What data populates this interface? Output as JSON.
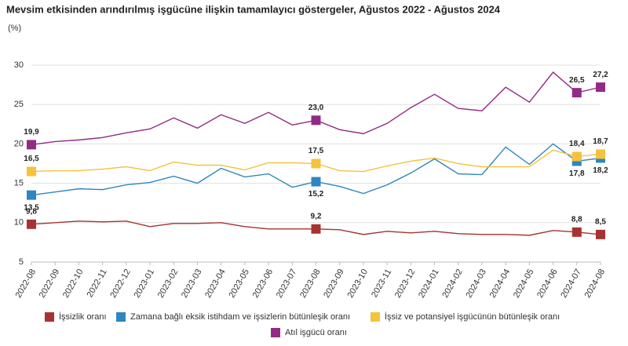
{
  "chart_data": {
    "type": "line",
    "title": "Mevsim etkisinden arındırılmış işgücüne ilişkin tamamlayıcı göstergeler, Ağustos 2022 - Ağustos 2024",
    "subtitle": "(%)",
    "categories": [
      "2022-08",
      "2022-09",
      "2022-10",
      "2022-11",
      "2022-12",
      "2023-01",
      "2023-02",
      "2023-03",
      "2023-04",
      "2023-05",
      "2023-06",
      "2023-07",
      "2023-08",
      "2023-09",
      "2023-10",
      "2023-11",
      "2023-12",
      "2024-01",
      "2024-02",
      "2024-03",
      "2024-04",
      "2024-05",
      "2024-06",
      "2024-07",
      "2024-08"
    ],
    "ylim": [
      5,
      30
    ],
    "yticks": [
      5,
      10,
      15,
      20,
      25,
      30
    ],
    "grid": true,
    "series": [
      {
        "name": "İşsizlik oranı",
        "color": "#a83232",
        "values": [
          9.8,
          10.0,
          10.2,
          10.1,
          10.2,
          9.5,
          9.9,
          9.9,
          10.0,
          9.5,
          9.2,
          9.2,
          9.2,
          9.1,
          8.5,
          8.9,
          8.7,
          8.9,
          8.6,
          8.5,
          8.5,
          8.4,
          9.0,
          8.8,
          8.5
        ],
        "value_labels": [
          "9,8",
          null,
          null,
          null,
          null,
          null,
          null,
          null,
          null,
          null,
          null,
          null,
          "9,2",
          null,
          null,
          null,
          null,
          null,
          null,
          null,
          null,
          null,
          null,
          "8,8",
          "8,5"
        ]
      },
      {
        "name": "Zamana bağlı eksik istihdam ve işsizlerin bütünleşik oranı",
        "color": "#2e86c1",
        "values": [
          13.5,
          13.9,
          14.3,
          14.2,
          14.8,
          15.1,
          15.9,
          15.0,
          16.9,
          15.8,
          16.2,
          14.5,
          15.2,
          14.6,
          13.7,
          14.8,
          16.3,
          18.1,
          16.2,
          16.1,
          19.6,
          17.4,
          20.0,
          17.8,
          18.2
        ],
        "value_labels": [
          "13,5",
          null,
          null,
          null,
          null,
          null,
          null,
          null,
          null,
          null,
          null,
          null,
          "15,2",
          null,
          null,
          null,
          null,
          null,
          null,
          null,
          null,
          null,
          null,
          "17,8",
          "18,2"
        ]
      },
      {
        "name": "İşsiz ve potansiyel işgücünün bütünleşik oranı",
        "color": "#f5c23e",
        "values": [
          16.5,
          16.6,
          16.6,
          16.8,
          17.1,
          16.6,
          17.7,
          17.3,
          17.3,
          16.7,
          17.6,
          17.6,
          17.5,
          16.6,
          16.5,
          17.2,
          17.8,
          18.2,
          17.5,
          17.1,
          17.1,
          17.1,
          19.2,
          18.4,
          18.7
        ],
        "value_labels": [
          "16,5",
          null,
          null,
          null,
          null,
          null,
          null,
          null,
          null,
          null,
          null,
          null,
          "17,5",
          null,
          null,
          null,
          null,
          null,
          null,
          null,
          null,
          null,
          null,
          "18,4",
          "18,7"
        ]
      },
      {
        "name": "Atıl işgücü oranı",
        "color": "#932a85",
        "values": [
          19.9,
          20.3,
          20.5,
          20.8,
          21.4,
          21.9,
          23.3,
          22.0,
          23.7,
          22.6,
          24.0,
          22.4,
          23.0,
          21.8,
          21.3,
          22.6,
          24.6,
          26.3,
          24.5,
          24.2,
          27.2,
          25.3,
          29.1,
          26.5,
          27.2
        ],
        "value_labels": [
          "19,9",
          null,
          null,
          null,
          null,
          null,
          null,
          null,
          null,
          null,
          null,
          null,
          "23,0",
          null,
          null,
          null,
          null,
          null,
          null,
          null,
          null,
          null,
          null,
          "26,5",
          "27,2"
        ]
      }
    ]
  }
}
